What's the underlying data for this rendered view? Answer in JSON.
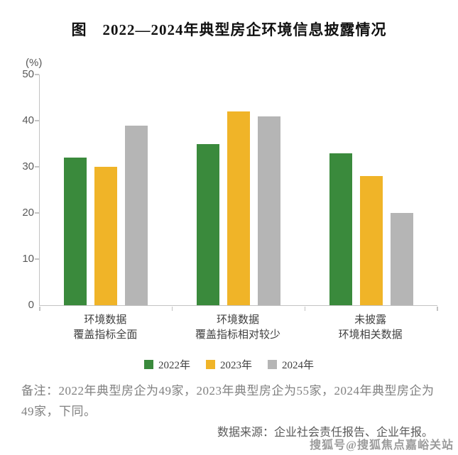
{
  "title": "图　2022—2024年典型房企环境信息披露情况",
  "chart_data": {
    "type": "bar",
    "unit_label": "(%)",
    "categories": [
      "环境数据\n覆盖指标全面",
      "环境数据\n覆盖指标相对较少",
      "未披露\n环境相关数据"
    ],
    "series": [
      {
        "name": "2022年",
        "color": "#3a8a3c",
        "values": [
          32,
          35,
          33
        ]
      },
      {
        "name": "2023年",
        "color": "#f0b428",
        "values": [
          30,
          42,
          28
        ]
      },
      {
        "name": "2024年",
        "color": "#b5b5b5",
        "values": [
          39,
          41,
          20
        ]
      }
    ],
    "ylim": [
      0,
      50
    ],
    "yticks": [
      0,
      10,
      20,
      30,
      40,
      50
    ],
    "grid": false,
    "legend_position": "bottom"
  },
  "note": "备注：2022年典型房企为49家，2023年典型房企为55家，2024年典型房企为49家，下同。",
  "source": "数据来源：企业社会责任报告、企业年报。",
  "watermark": "搜狐号@搜狐焦点嘉峪关站"
}
